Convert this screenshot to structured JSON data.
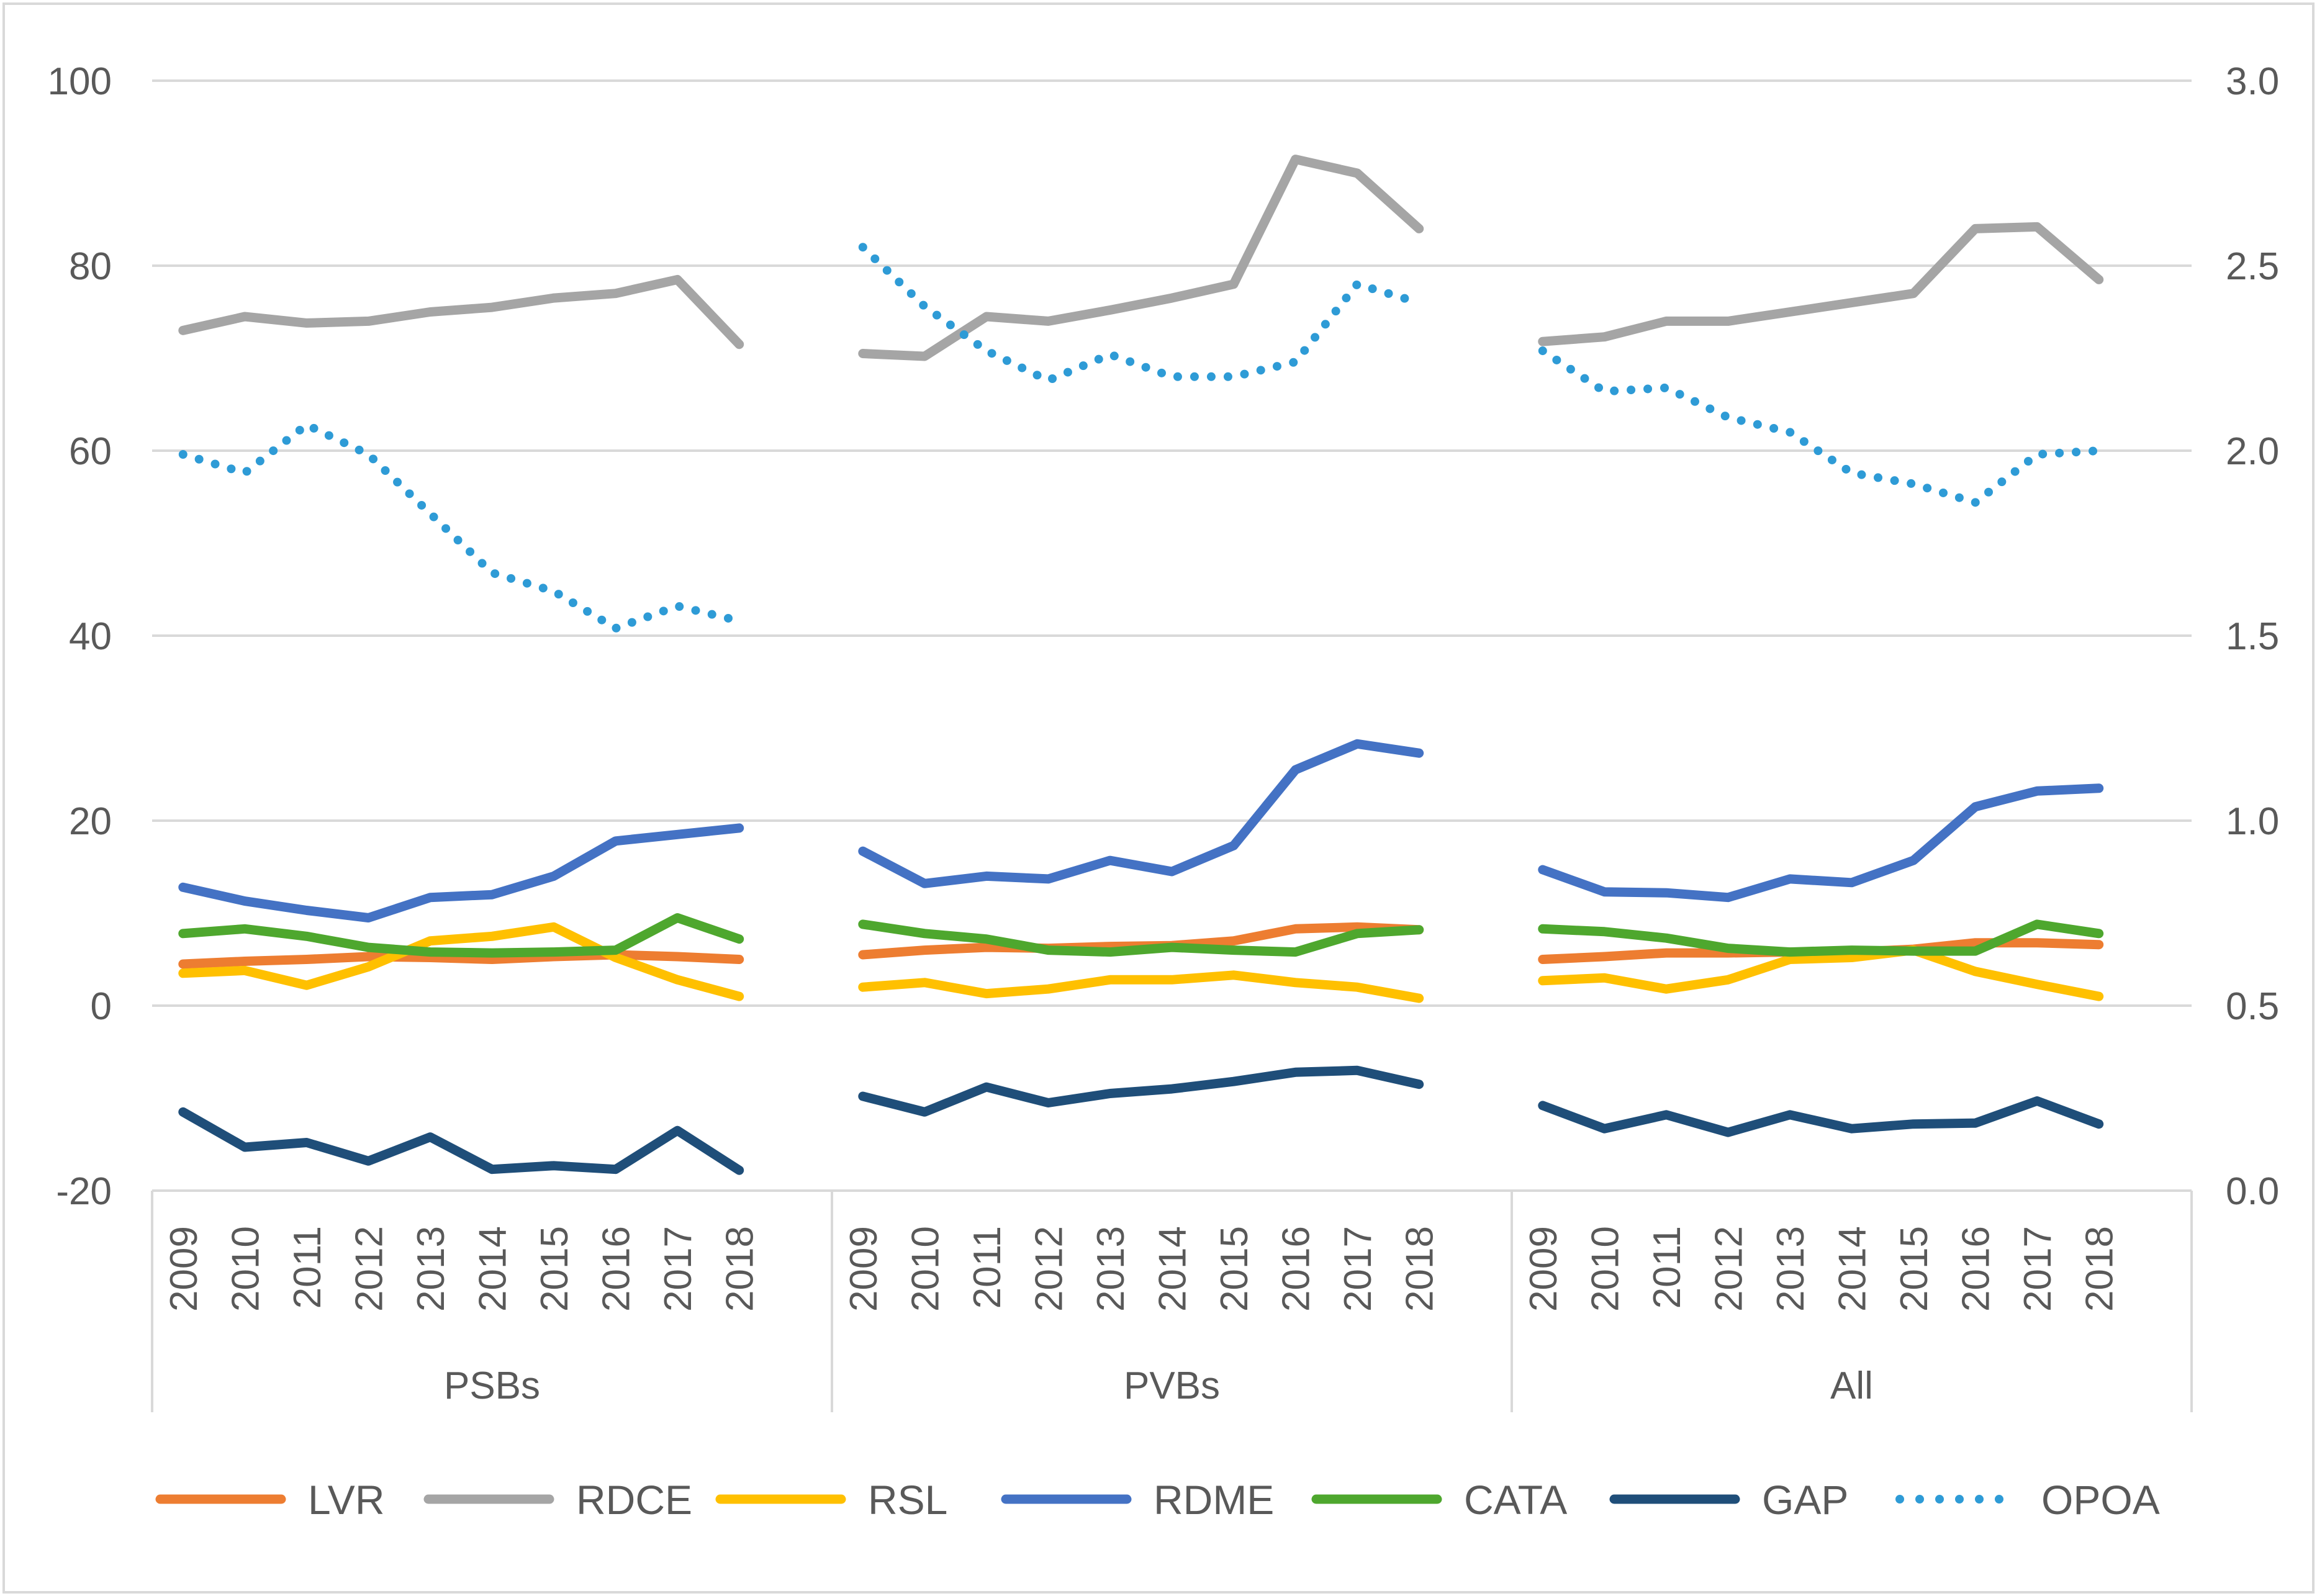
{
  "chart_data": {
    "type": "line",
    "title": "",
    "groups": [
      "PSBs",
      "PVBs",
      "All"
    ],
    "categories": [
      "2009",
      "2010",
      "2011",
      "2012",
      "2013",
      "2014",
      "2015",
      "2016",
      "2017",
      "2018"
    ],
    "y_left": {
      "min": -20,
      "max": 100,
      "step": 20,
      "ticks": [
        "-20",
        "0",
        "20",
        "40",
        "60",
        "80",
        "100"
      ]
    },
    "y_right": {
      "min": 0.0,
      "max": 3.0,
      "step": 0.5,
      "ticks": [
        "0.0",
        "0.5",
        "1.0",
        "1.5",
        "2.0",
        "2.5",
        "3.0"
      ]
    },
    "gridlines": true,
    "legend_position": "bottom",
    "series": [
      {
        "name": "LVR",
        "axis": "left",
        "color": "#ED7D31",
        "style": "solid",
        "values": [
          [
            4.5,
            4.8,
            5.0,
            5.3,
            5.2,
            5.0,
            5.3,
            5.5,
            5.3,
            5.0
          ],
          [
            5.5,
            6.0,
            6.3,
            6.2,
            6.4,
            6.5,
            7.0,
            8.3,
            8.5,
            8.2
          ],
          [
            5.0,
            5.3,
            5.7,
            5.7,
            5.8,
            5.8,
            6.1,
            6.8,
            6.8,
            6.6
          ]
        ]
      },
      {
        "name": "RDCE",
        "axis": "left",
        "color": "#A5A5A5",
        "style": "solid",
        "values": [
          [
            73.0,
            74.5,
            73.8,
            74.0,
            75.0,
            75.5,
            76.5,
            77.0,
            78.5,
            71.5
          ],
          [
            70.5,
            70.2,
            74.5,
            74.0,
            75.2,
            76.5,
            78.0,
            91.5,
            90.0,
            84.0
          ],
          [
            71.8,
            72.3,
            74.0,
            74.0,
            75.0,
            76.0,
            77.0,
            84.0,
            84.2,
            78.5
          ]
        ]
      },
      {
        "name": "RSL",
        "axis": "left",
        "color": "#FFC000",
        "style": "solid",
        "values": [
          [
            3.5,
            3.8,
            2.2,
            4.2,
            7.0,
            7.5,
            8.5,
            5.2,
            2.8,
            1.0
          ],
          [
            2.0,
            2.5,
            1.3,
            1.8,
            2.8,
            2.8,
            3.3,
            2.5,
            2.0,
            0.8
          ],
          [
            2.7,
            3.0,
            1.8,
            2.8,
            5.0,
            5.2,
            6.0,
            3.7,
            2.3,
            1.0
          ]
        ]
      },
      {
        "name": "RDME",
        "axis": "left",
        "color": "#4472C4",
        "style": "solid",
        "values": [
          [
            12.8,
            11.3,
            10.3,
            9.5,
            11.7,
            12.0,
            14.0,
            17.8,
            18.5,
            19.2
          ],
          [
            16.7,
            13.2,
            14.0,
            13.7,
            15.7,
            14.5,
            17.3,
            25.5,
            28.3,
            27.3
          ],
          [
            14.7,
            12.3,
            12.2,
            11.7,
            13.7,
            13.3,
            15.7,
            21.5,
            23.2,
            23.5
          ]
        ]
      },
      {
        "name": "CATA",
        "axis": "left",
        "color": "#4EA72E",
        "style": "solid",
        "values": [
          [
            7.8,
            8.3,
            7.5,
            6.3,
            5.8,
            5.7,
            5.8,
            6.0,
            9.5,
            7.2
          ],
          [
            8.8,
            7.8,
            7.2,
            6.0,
            5.8,
            6.3,
            6.0,
            5.8,
            7.8,
            8.2
          ],
          [
            8.3,
            8.0,
            7.3,
            6.2,
            5.8,
            6.0,
            5.9,
            5.9,
            8.8,
            7.8
          ]
        ]
      },
      {
        "name": "GAP",
        "axis": "left",
        "color": "#1F4E79",
        "style": "solid",
        "values": [
          [
            -11.5,
            -15.3,
            -14.8,
            -16.8,
            -14.2,
            -17.7,
            -17.3,
            -17.7,
            -13.5,
            -17.8
          ],
          [
            -9.8,
            -11.5,
            -8.8,
            -10.5,
            -9.5,
            -9.0,
            -8.2,
            -7.2,
            -7.0,
            -8.5
          ],
          [
            -10.8,
            -13.3,
            -11.8,
            -13.7,
            -11.8,
            -13.3,
            -12.8,
            -12.7,
            -10.3,
            -12.8
          ]
        ]
      },
      {
        "name": "OPOA",
        "axis": "right",
        "color": "#2E9BD6",
        "style": "dotted",
        "values": [
          [
            1.99,
            1.94,
            2.07,
            1.99,
            1.83,
            1.67,
            1.62,
            1.52,
            1.58,
            1.54
          ],
          [
            2.55,
            2.39,
            2.27,
            2.19,
            2.26,
            2.2,
            2.2,
            2.24,
            2.45,
            2.4
          ],
          [
            2.27,
            2.16,
            2.17,
            2.09,
            2.05,
            1.94,
            1.91,
            1.86,
            1.99,
            2.0
          ]
        ]
      }
    ]
  }
}
